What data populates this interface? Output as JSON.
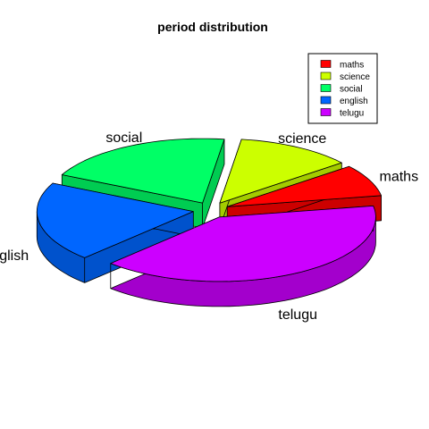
{
  "chart_data": {
    "type": "pie",
    "style": "3d-exploded",
    "title": "period distribution",
    "categories": [
      "maths",
      "science",
      "social",
      "english",
      "telugu"
    ],
    "values": [
      8,
      12,
      20,
      20,
      40
    ],
    "colors": [
      "#FF0000",
      "#CCFF00",
      "#00FF66",
      "#0066FF",
      "#CC00FF"
    ],
    "side_colors": [
      "#CC0000",
      "#A3CC00",
      "#00CC52",
      "#0052CC",
      "#A300CC"
    ],
    "legend": {
      "position": "top-right",
      "entries": [
        "maths",
        "science",
        "social",
        "english",
        "telugu"
      ]
    }
  }
}
